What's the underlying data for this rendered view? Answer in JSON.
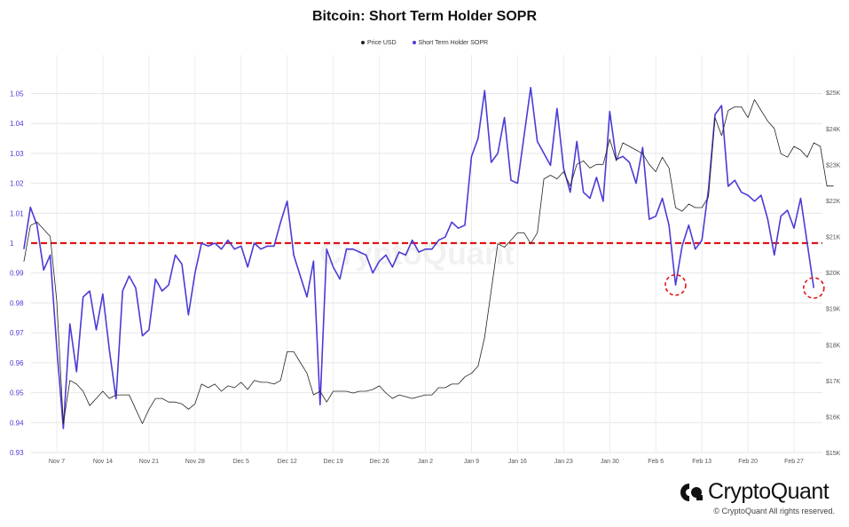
{
  "chart_data": {
    "type": "line",
    "title": "Bitcoin: Short Term Holder SOPR",
    "legend": [
      "Price USD",
      "Short Term Holder SOPR"
    ],
    "legend_position": "top-center",
    "grid": true,
    "x_ticks": [
      "Nov 7",
      "Nov 14",
      "Nov 21",
      "Nov 28",
      "Dec 5",
      "Dec 12",
      "Dec 19",
      "Dec 26",
      "Jan 2",
      "Jan 9",
      "Jan 16",
      "Jan 23",
      "Jan 30",
      "Feb 6",
      "Feb 13",
      "Feb 20",
      "Feb 27"
    ],
    "y_left": {
      "ticks": [
        "0.93",
        "0.94",
        "0.95",
        "0.96",
        "0.97",
        "0.98",
        "0.99",
        "1",
        "1.01",
        "1.02",
        "1.03",
        "1.04",
        "1.05"
      ],
      "range": [
        0.93,
        1.054
      ]
    },
    "y_right": {
      "ticks": [
        "$15K",
        "$16K",
        "$17K",
        "$18K",
        "$19K",
        "$20K",
        "$21K",
        "$22K",
        "$23K",
        "$24K",
        "$25K"
      ],
      "range": [
        15000,
        25300
      ]
    },
    "reference_line": 1,
    "series": [
      {
        "name": "Short Term Holder SOPR",
        "axis": "left",
        "color": "#4b3bd6",
        "values": [
          [
            "Nov 2",
            0.998
          ],
          [
            "Nov 3",
            1.012
          ],
          [
            "Nov 4",
            1.006
          ],
          [
            "Nov 5",
            0.991
          ],
          [
            "Nov 6",
            0.996
          ],
          [
            "Nov 7",
            0.965
          ],
          [
            "Nov 8",
            0.938
          ],
          [
            "Nov 9",
            0.973
          ],
          [
            "Nov 10",
            0.957
          ],
          [
            "Nov 11",
            0.982
          ],
          [
            "Nov 12",
            0.984
          ],
          [
            "Nov 13",
            0.971
          ],
          [
            "Nov 14",
            0.983
          ],
          [
            "Nov 15",
            0.964
          ],
          [
            "Nov 16",
            0.948
          ],
          [
            "Nov 17",
            0.984
          ],
          [
            "Nov 18",
            0.989
          ],
          [
            "Nov 19",
            0.985
          ],
          [
            "Nov 20",
            0.969
          ],
          [
            "Nov 21",
            0.971
          ],
          [
            "Nov 22",
            0.988
          ],
          [
            "Nov 23",
            0.984
          ],
          [
            "Nov 24",
            0.986
          ],
          [
            "Nov 25",
            0.996
          ],
          [
            "Nov 26",
            0.993
          ],
          [
            "Nov 27",
            0.976
          ],
          [
            "Nov 28",
            0.99
          ],
          [
            "Nov 29",
            1.0
          ],
          [
            "Nov 30",
            0.999
          ],
          [
            "Dec 1",
            1.0
          ],
          [
            "Dec 2",
            0.998
          ],
          [
            "Dec 3",
            1.001
          ],
          [
            "Dec 4",
            0.998
          ],
          [
            "Dec 5",
            0.999
          ],
          [
            "Dec 6",
            0.992
          ],
          [
            "Dec 7",
            1.0
          ],
          [
            "Dec 8",
            0.998
          ],
          [
            "Dec 9",
            0.999
          ],
          [
            "Dec 10",
            0.999
          ],
          [
            "Dec 11",
            1.007
          ],
          [
            "Dec 12",
            1.014
          ],
          [
            "Dec 13",
            0.996
          ],
          [
            "Dec 14",
            0.989
          ],
          [
            "Dec 15",
            0.982
          ],
          [
            "Dec 16",
            0.994
          ],
          [
            "Dec 17",
            0.946
          ],
          [
            "Dec 18",
            0.998
          ],
          [
            "Dec 19",
            0.992
          ],
          [
            "Dec 20",
            0.988
          ],
          [
            "Dec 21",
            0.998
          ],
          [
            "Dec 22",
            0.998
          ],
          [
            "Dec 23",
            0.997
          ],
          [
            "Dec 24",
            0.996
          ],
          [
            "Dec 25",
            0.99
          ],
          [
            "Dec 26",
            0.994
          ],
          [
            "Dec 27",
            0.996
          ],
          [
            "Dec 28",
            0.992
          ],
          [
            "Dec 29",
            0.997
          ],
          [
            "Dec 30",
            0.996
          ],
          [
            "Dec 31",
            1.001
          ],
          [
            "Jan 1",
            0.997
          ],
          [
            "Jan 2",
            0.998
          ],
          [
            "Jan 3",
            0.998
          ],
          [
            "Jan 4",
            1.001
          ],
          [
            "Jan 5",
            1.002
          ],
          [
            "Jan 6",
            1.007
          ],
          [
            "Jan 7",
            1.005
          ],
          [
            "Jan 8",
            1.006
          ],
          [
            "Jan 9",
            1.029
          ],
          [
            "Jan 10",
            1.035
          ],
          [
            "Jan 11",
            1.051
          ],
          [
            "Jan 12",
            1.027
          ],
          [
            "Jan 13",
            1.03
          ],
          [
            "Jan 14",
            1.042
          ],
          [
            "Jan 15",
            1.021
          ],
          [
            "Jan 16",
            1.02
          ],
          [
            "Jan 17",
            1.036
          ],
          [
            "Jan 18",
            1.052
          ],
          [
            "Jan 19",
            1.034
          ],
          [
            "Jan 20",
            1.03
          ],
          [
            "Jan 21",
            1.026
          ],
          [
            "Jan 22",
            1.045
          ],
          [
            "Jan 23",
            1.025
          ],
          [
            "Jan 24",
            1.017
          ],
          [
            "Jan 25",
            1.034
          ],
          [
            "Jan 26",
            1.017
          ],
          [
            "Jan 27",
            1.015
          ],
          [
            "Jan 28",
            1.022
          ],
          [
            "Jan 29",
            1.014
          ],
          [
            "Jan 30",
            1.044
          ],
          [
            "Jan 31",
            1.028
          ],
          [
            "Feb 1",
            1.029
          ],
          [
            "Feb 2",
            1.027
          ],
          [
            "Feb 3",
            1.02
          ],
          [
            "Feb 4",
            1.032
          ],
          [
            "Feb 5",
            1.008
          ],
          [
            "Feb 6",
            1.009
          ],
          [
            "Feb 7",
            1.015
          ],
          [
            "Feb 8",
            1.006
          ],
          [
            "Feb 9",
            0.986
          ],
          [
            "Feb 10",
            0.999
          ],
          [
            "Feb 11",
            1.006
          ],
          [
            "Feb 12",
            0.998
          ],
          [
            "Feb 13",
            1.001
          ],
          [
            "Feb 14",
            1.018
          ],
          [
            "Feb 15",
            1.043
          ],
          [
            "Feb 16",
            1.046
          ],
          [
            "Feb 17",
            1.019
          ],
          [
            "Feb 18",
            1.021
          ],
          [
            "Feb 19",
            1.017
          ],
          [
            "Feb 20",
            1.016
          ],
          [
            "Feb 21",
            1.014
          ],
          [
            "Feb 22",
            1.016
          ],
          [
            "Feb 23",
            1.008
          ],
          [
            "Feb 24",
            0.996
          ],
          [
            "Feb 25",
            1.009
          ],
          [
            "Feb 26",
            1.011
          ],
          [
            "Feb 27",
            1.005
          ],
          [
            "Feb 28",
            1.015
          ],
          [
            "Mar 1",
            1.0
          ],
          [
            "Mar 2",
            0.985
          ]
        ]
      },
      {
        "name": "Price USD",
        "axis": "right",
        "color": "#222222",
        "values": [
          [
            "Nov 2",
            20300
          ],
          [
            "Nov 3",
            21300
          ],
          [
            "Nov 4",
            21400
          ],
          [
            "Nov 5",
            21200
          ],
          [
            "Nov 6",
            21000
          ],
          [
            "Nov 7",
            19200
          ],
          [
            "Nov 8",
            15800
          ],
          [
            "Nov 9",
            17000
          ],
          [
            "Nov 10",
            16900
          ],
          [
            "Nov 11",
            16700
          ],
          [
            "Nov 12",
            16300
          ],
          [
            "Nov 13",
            16500
          ],
          [
            "Nov 14",
            16700
          ],
          [
            "Nov 15",
            16500
          ],
          [
            "Nov 16",
            16600
          ],
          [
            "Nov 17",
            16600
          ],
          [
            "Nov 18",
            16600
          ],
          [
            "Nov 19",
            16200
          ],
          [
            "Nov 20",
            15800
          ],
          [
            "Nov 21",
            16200
          ],
          [
            "Nov 22",
            16500
          ],
          [
            "Nov 23",
            16500
          ],
          [
            "Nov 24",
            16400
          ],
          [
            "Nov 25",
            16400
          ],
          [
            "Nov 26",
            16350
          ],
          [
            "Nov 27",
            16200
          ],
          [
            "Nov 28",
            16350
          ],
          [
            "Nov 29",
            16900
          ],
          [
            "Nov 30",
            16800
          ],
          [
            "Dec 1",
            16900
          ],
          [
            "Dec 2",
            16700
          ],
          [
            "Dec 3",
            16850
          ],
          [
            "Dec 4",
            16800
          ],
          [
            "Dec 5",
            16950
          ],
          [
            "Dec 6",
            16750
          ],
          [
            "Dec 7",
            17000
          ],
          [
            "Dec 8",
            16950
          ],
          [
            "Dec 9",
            16950
          ],
          [
            "Dec 10",
            16900
          ],
          [
            "Dec 11",
            17000
          ],
          [
            "Dec 12",
            17800
          ],
          [
            "Dec 13",
            17800
          ],
          [
            "Dec 14",
            17500
          ],
          [
            "Dec 15",
            17200
          ],
          [
            "Dec 16",
            16600
          ],
          [
            "Dec 17",
            16700
          ],
          [
            "Dec 18",
            16400
          ],
          [
            "Dec 19",
            16700
          ],
          [
            "Dec 20",
            16700
          ],
          [
            "Dec 21",
            16700
          ],
          [
            "Dec 22",
            16650
          ],
          [
            "Dec 23",
            16700
          ],
          [
            "Dec 24",
            16700
          ],
          [
            "Dec 25",
            16750
          ],
          [
            "Dec 26",
            16850
          ],
          [
            "Dec 27",
            16650
          ],
          [
            "Dec 28",
            16500
          ],
          [
            "Dec 29",
            16600
          ],
          [
            "Dec 30",
            16550
          ],
          [
            "Dec 31",
            16500
          ],
          [
            "Jan 1",
            16550
          ],
          [
            "Jan 2",
            16600
          ],
          [
            "Jan 3",
            16600
          ],
          [
            "Jan 4",
            16800
          ],
          [
            "Jan 5",
            16800
          ],
          [
            "Jan 6",
            16900
          ],
          [
            "Jan 7",
            16900
          ],
          [
            "Jan 8",
            17100
          ],
          [
            "Jan 9",
            17200
          ],
          [
            "Jan 10",
            17400
          ],
          [
            "Jan 11",
            18200
          ],
          [
            "Jan 12",
            19500
          ],
          [
            "Jan 13",
            20800
          ],
          [
            "Jan 14",
            20700
          ],
          [
            "Jan 15",
            20900
          ],
          [
            "Jan 16",
            21100
          ],
          [
            "Jan 17",
            21100
          ],
          [
            "Jan 18",
            20800
          ],
          [
            "Jan 19",
            21100
          ],
          [
            "Jan 20",
            22600
          ],
          [
            "Jan 21",
            22700
          ],
          [
            "Jan 22",
            22600
          ],
          [
            "Jan 23",
            22800
          ],
          [
            "Jan 24",
            22400
          ],
          [
            "Jan 25",
            23000
          ],
          [
            "Jan 26",
            23100
          ],
          [
            "Jan 27",
            22900
          ],
          [
            "Jan 28",
            23000
          ],
          [
            "Jan 29",
            23000
          ],
          [
            "Jan 30",
            23700
          ],
          [
            "Jan 31",
            23100
          ],
          [
            "Feb 1",
            23600
          ],
          [
            "Feb 2",
            23500
          ],
          [
            "Feb 3",
            23400
          ],
          [
            "Feb 4",
            23300
          ],
          [
            "Feb 5",
            23000
          ],
          [
            "Feb 6",
            22800
          ],
          [
            "Feb 7",
            23200
          ],
          [
            "Feb 8",
            22900
          ],
          [
            "Feb 9",
            21800
          ],
          [
            "Feb 10",
            21700
          ],
          [
            "Feb 11",
            21900
          ],
          [
            "Feb 12",
            21800
          ],
          [
            "Feb 13",
            21800
          ],
          [
            "Feb 14",
            22100
          ],
          [
            "Feb 15",
            24300
          ],
          [
            "Feb 16",
            23800
          ],
          [
            "Feb 17",
            24500
          ],
          [
            "Feb 18",
            24600
          ],
          [
            "Feb 19",
            24600
          ],
          [
            "Feb 20",
            24300
          ],
          [
            "Feb 21",
            24800
          ],
          [
            "Feb 22",
            24500
          ],
          [
            "Feb 23",
            24200
          ],
          [
            "Feb 24",
            24000
          ],
          [
            "Feb 25",
            23300
          ],
          [
            "Feb 26",
            23200
          ],
          [
            "Feb 27",
            23500
          ],
          [
            "Feb 28",
            23400
          ],
          [
            "Mar 1",
            23200
          ],
          [
            "Mar 2",
            23600
          ],
          [
            "Mar 3",
            23500
          ],
          [
            "Mar 4",
            22400
          ],
          [
            "Mar 5",
            22400
          ]
        ]
      }
    ],
    "annotations": [
      {
        "type": "circle",
        "x": "Feb 9",
        "y": 0.986
      },
      {
        "type": "circle",
        "x": "Mar 2",
        "y": 0.985
      }
    ]
  },
  "watermark": "CryptoQuant",
  "brand": {
    "name": "CryptoQuant",
    "copyright": "© CryptoQuant All rights reserved."
  }
}
